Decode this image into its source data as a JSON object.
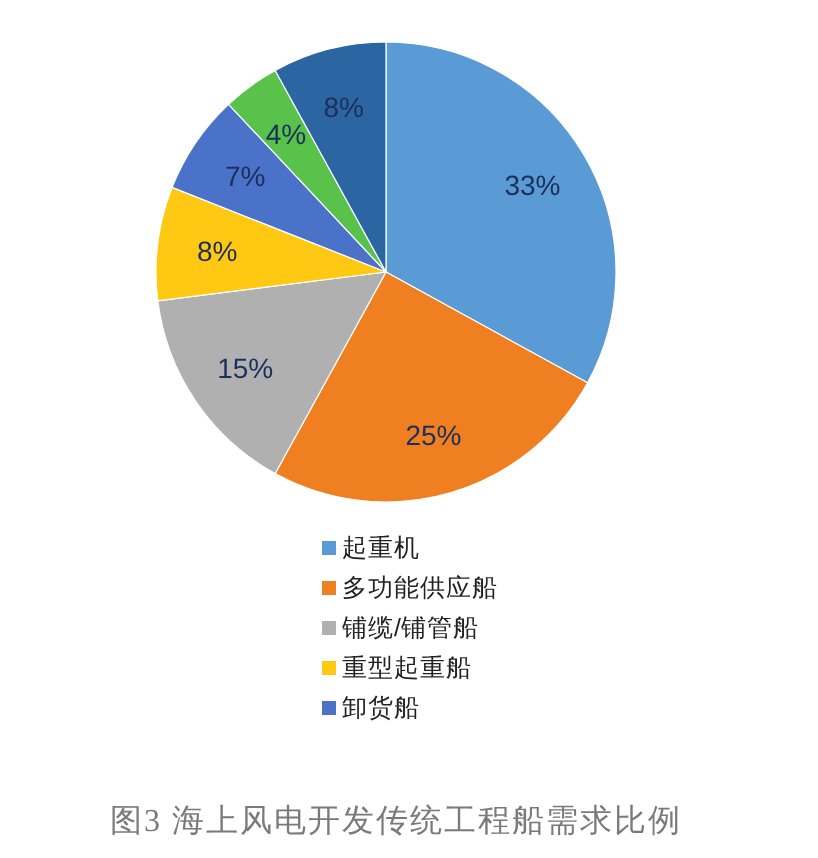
{
  "chart_data": {
    "type": "pie",
    "title": "图3 海上风电开发传统工程船需求比例",
    "categories": [
      "起重机",
      "多功能供应船",
      "铺缆/铺管船",
      "重型起重船",
      "卸货船",
      null,
      null
    ],
    "values": [
      33,
      25,
      15,
      8,
      7,
      4,
      8
    ],
    "colors": [
      "#5b9bd5",
      "#f07f22",
      "#b0b0b0",
      "#ffc812",
      "#4a72c8",
      "#58c24a",
      "#2b66a3"
    ],
    "value_labels": [
      "33%",
      "25%",
      "15%",
      "8%",
      "7%",
      "4%",
      "8%"
    ],
    "legend": "bottom"
  }
}
